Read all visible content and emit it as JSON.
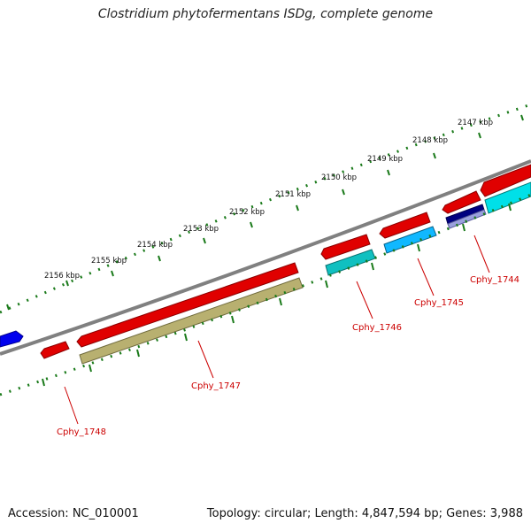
{
  "title": "Clostridium phytofermentans ISDg, complete genome",
  "footer": {
    "accession": "Accession: NC_010001",
    "summary": "Topology: circular; Length: 4,847,594 bp; Genes: 3,988"
  },
  "ruler_labels": [
    "2147 kbp",
    "2148 kbp",
    "2149 kbp",
    "2150 kbp",
    "2151 kbp",
    "2152 kbp",
    "2153 kbp",
    "2154 kbp",
    "2155 kbp",
    "2156 kbp"
  ],
  "gene_labels": [
    "Cphy_1744",
    "Cphy_1745",
    "Cphy_1746",
    "Cphy_1747",
    "Cphy_1748"
  ],
  "colors": {
    "backbone": "#808080",
    "cds": "#e00000",
    "blue_feature": "#0000ee",
    "cyan": "#00e0e8",
    "teal": "#10c0c0",
    "sky": "#10b8ff",
    "navy": "#000080",
    "olive": "#b8b070",
    "tick": "#1a7a1a",
    "label": "#cc0000"
  }
}
